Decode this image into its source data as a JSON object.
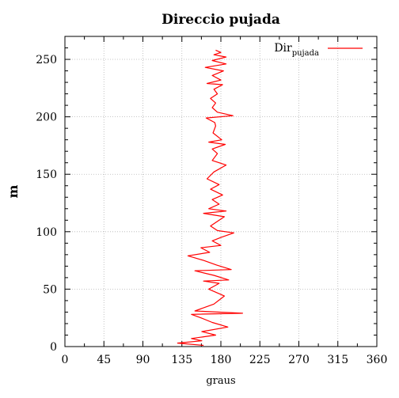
{
  "chart_data": {
    "type": "line",
    "title": "Direccio pujada",
    "xlabel": "graus",
    "ylabel": "m",
    "xlim": [
      0,
      360
    ],
    "ylim": [
      0,
      270
    ],
    "xticks": [
      0,
      45,
      90,
      135,
      180,
      225,
      270,
      315,
      360
    ],
    "yticks": [
      0,
      50,
      100,
      150,
      200,
      250
    ],
    "grid": true,
    "legend_position": "top-right",
    "series": [
      {
        "name": "Dir",
        "name_subscript": "pujada",
        "color": "#ff0000",
        "points": [
          [
            160,
            1
          ],
          [
            130,
            3
          ],
          [
            158,
            5
          ],
          [
            146,
            7
          ],
          [
            174,
            10
          ],
          [
            158,
            13
          ],
          [
            188,
            17
          ],
          [
            170,
            21
          ],
          [
            157,
            25
          ],
          [
            146,
            28
          ],
          [
            205,
            29
          ],
          [
            150,
            31
          ],
          [
            172,
            37
          ],
          [
            184,
            44
          ],
          [
            166,
            50
          ],
          [
            178,
            55
          ],
          [
            160,
            57
          ],
          [
            189,
            58
          ],
          [
            172,
            62
          ],
          [
            150,
            66
          ],
          [
            192,
            67
          ],
          [
            175,
            71
          ],
          [
            160,
            75
          ],
          [
            142,
            79
          ],
          [
            167,
            82
          ],
          [
            157,
            86
          ],
          [
            180,
            88
          ],
          [
            170,
            92
          ],
          [
            180,
            95
          ],
          [
            195,
            99
          ],
          [
            176,
            101
          ],
          [
            168,
            105
          ],
          [
            174,
            108
          ],
          [
            184,
            113
          ],
          [
            160,
            116
          ],
          [
            186,
            118
          ],
          [
            166,
            120
          ],
          [
            178,
            124
          ],
          [
            170,
            128
          ],
          [
            182,
            132
          ],
          [
            168,
            137
          ],
          [
            178,
            141
          ],
          [
            164,
            146
          ],
          [
            172,
            152
          ],
          [
            186,
            158
          ],
          [
            170,
            162
          ],
          [
            176,
            168
          ],
          [
            170,
            172
          ],
          [
            185,
            176
          ],
          [
            166,
            178
          ],
          [
            181,
            180
          ],
          [
            171,
            186
          ],
          [
            174,
            192
          ],
          [
            173,
            195
          ],
          [
            163,
            199
          ],
          [
            194,
            201
          ],
          [
            176,
            204
          ],
          [
            170,
            208
          ],
          [
            174,
            212
          ],
          [
            168,
            216
          ],
          [
            176,
            220
          ],
          [
            172,
            224
          ],
          [
            182,
            228
          ],
          [
            164,
            229
          ],
          [
            180,
            232
          ],
          [
            170,
            236
          ],
          [
            183,
            240
          ],
          [
            162,
            243
          ],
          [
            186,
            246
          ],
          [
            170,
            249
          ],
          [
            186,
            252
          ],
          [
            172,
            254
          ],
          [
            180,
            256
          ],
          [
            174,
            258
          ]
        ]
      }
    ]
  }
}
